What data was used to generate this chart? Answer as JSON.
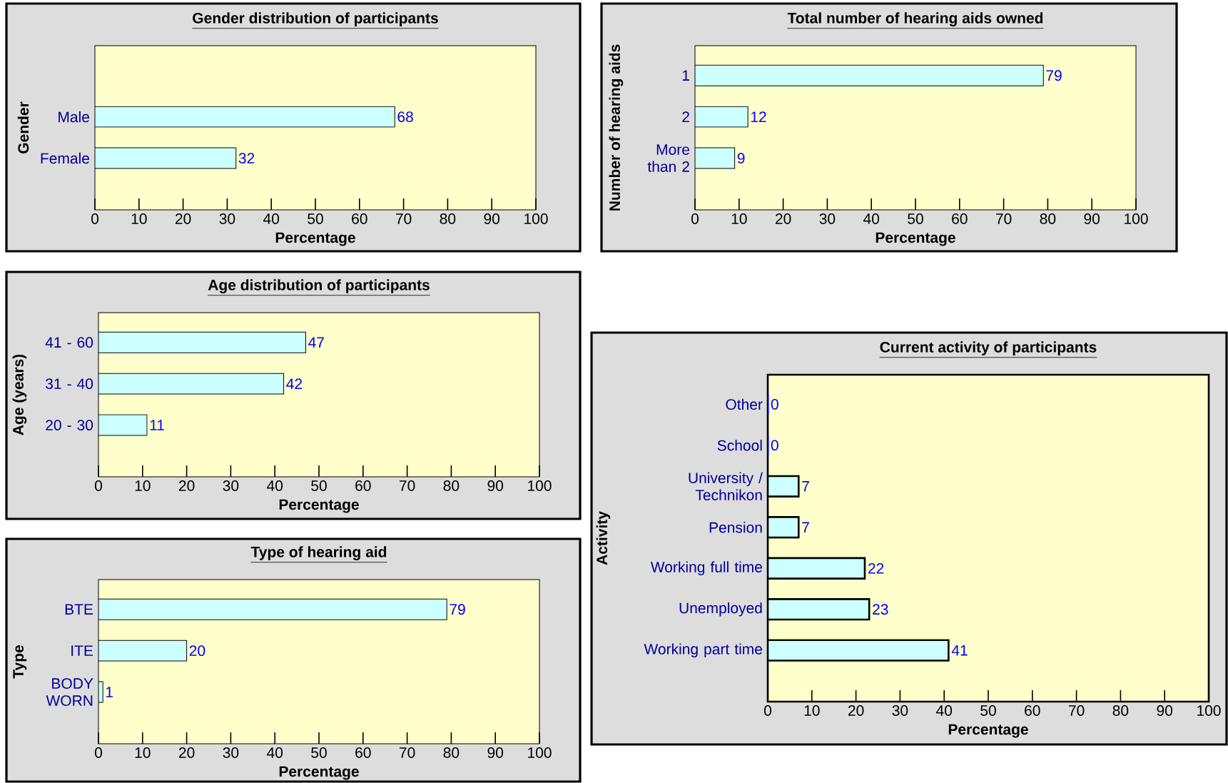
{
  "chart_data": [
    {
      "type": "bar",
      "orientation": "horizontal",
      "title": "Gender distribution of participants",
      "xlabel": "Percentage",
      "ylabel": "Gender",
      "categories": [
        "Male",
        "Female"
      ],
      "values": [
        68,
        32
      ],
      "color": "#ccffff",
      "xlim": [
        0,
        100
      ],
      "xticks": [
        0,
        10,
        20,
        30,
        40,
        50,
        60,
        70,
        80,
        90,
        100
      ],
      "data_labels": true
    },
    {
      "type": "bar",
      "orientation": "horizontal",
      "title": "Total number of hearing aids owned",
      "xlabel": "Percentage",
      "ylabel": "Number of hearing aids",
      "categories": [
        "1",
        "2",
        "More than 2"
      ],
      "values": [
        79,
        12,
        9
      ],
      "color": "#ccffff",
      "xlim": [
        0,
        100
      ],
      "xticks": [
        0,
        10,
        20,
        30,
        40,
        50,
        60,
        70,
        80,
        90,
        100
      ],
      "data_labels": true
    },
    {
      "type": "bar",
      "orientation": "horizontal",
      "title": "Age distribution of participants",
      "xlabel": "Percentage",
      "ylabel": "Age (years)",
      "categories": [
        "41 - 60",
        "31 - 40",
        "20 - 30"
      ],
      "values": [
        47,
        42,
        11
      ],
      "color": "#ccffff",
      "xlim": [
        0,
        100
      ],
      "xticks": [
        0,
        10,
        20,
        30,
        40,
        50,
        60,
        70,
        80,
        90,
        100
      ],
      "data_labels": true
    },
    {
      "type": "bar",
      "orientation": "horizontal",
      "title": "Type of hearing aid",
      "xlabel": "Percentage",
      "ylabel": "Type",
      "categories": [
        "BTE",
        "ITE",
        "BODY WORN"
      ],
      "values": [
        79,
        20,
        1
      ],
      "color": "#ccffff",
      "xlim": [
        0,
        100
      ],
      "xticks": [
        0,
        10,
        20,
        30,
        40,
        50,
        60,
        70,
        80,
        90,
        100
      ],
      "data_labels": true
    },
    {
      "type": "bar",
      "orientation": "horizontal",
      "title": "Current activity of participants",
      "xlabel": "Percentage",
      "ylabel": "Activity",
      "categories": [
        "Other",
        "School",
        "University / Technikon",
        "Pension",
        "Working full time",
        "Unemployed",
        "Working part time"
      ],
      "values": [
        0,
        0,
        7,
        7,
        22,
        23,
        41
      ],
      "colors": [
        "#0000ff",
        "#0000ff",
        "#ccffff",
        "#ccffff",
        "#ccffff",
        "#ccffff",
        "#ccffff"
      ],
      "xlim": [
        0,
        100
      ],
      "xticks": [
        0,
        10,
        20,
        30,
        40,
        50,
        60,
        70,
        80,
        90,
        100
      ],
      "data_labels": true
    }
  ]
}
